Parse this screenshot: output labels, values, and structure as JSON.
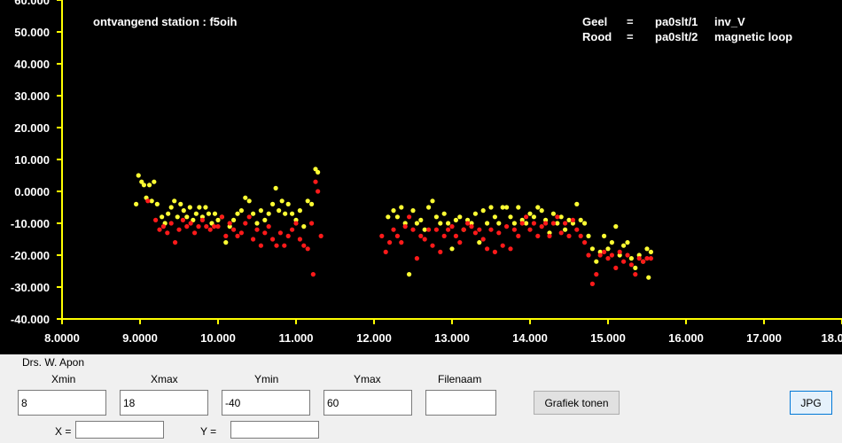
{
  "chart_data": {
    "type": "scatter",
    "title": "ontvangend station :  f5oih",
    "legend": [
      {
        "label": "Geel",
        "eq": "=",
        "station": "pa0slt/1",
        "antenna": "inv_V",
        "color": "#ffff33"
      },
      {
        "label": "Rood",
        "eq": "=",
        "station": "pa0slt/2",
        "antenna": "magnetic loop",
        "color": "#ff1a1a"
      }
    ],
    "legend_position": "top-right",
    "xlim": [
      8,
      18
    ],
    "ylim": [
      -40,
      60
    ],
    "x_ticks": [
      "8.0000",
      "9.0000",
      "10.000",
      "11.000",
      "12.000",
      "13.000",
      "14.000",
      "15.000",
      "16.000",
      "17.000",
      "18.0000"
    ],
    "y_ticks": [
      "60.000",
      "50.000",
      "40.000",
      "30.000",
      "20.000",
      "10.000",
      "0.0000",
      "-10.000",
      "-20.000",
      "-30.000",
      "-40.000"
    ],
    "grid": false,
    "series": [
      {
        "name": "Geel",
        "color": "#ffff33",
        "points": [
          [
            8.95,
            -4
          ],
          [
            8.98,
            5
          ],
          [
            9.02,
            3
          ],
          [
            9.05,
            2
          ],
          [
            9.08,
            -2
          ],
          [
            9.12,
            2
          ],
          [
            9.15,
            -3
          ],
          [
            9.18,
            3
          ],
          [
            9.22,
            -4
          ],
          [
            9.28,
            -8
          ],
          [
            9.32,
            -10
          ],
          [
            9.36,
            -7
          ],
          [
            9.4,
            -5
          ],
          [
            9.44,
            -3
          ],
          [
            9.48,
            -8
          ],
          [
            9.52,
            -4
          ],
          [
            9.56,
            -6
          ],
          [
            9.6,
            -8
          ],
          [
            9.64,
            -5
          ],
          [
            9.68,
            -9
          ],
          [
            9.72,
            -7
          ],
          [
            9.76,
            -5
          ],
          [
            9.8,
            -8
          ],
          [
            9.84,
            -5
          ],
          [
            9.88,
            -7
          ],
          [
            9.92,
            -10
          ],
          [
            9.96,
            -7
          ],
          [
            10.0,
            -9
          ],
          [
            10.05,
            -8
          ],
          [
            10.1,
            -16
          ],
          [
            10.15,
            -11
          ],
          [
            10.2,
            -9
          ],
          [
            10.25,
            -7
          ],
          [
            10.3,
            -6
          ],
          [
            10.35,
            -2
          ],
          [
            10.4,
            -3
          ],
          [
            10.45,
            -7
          ],
          [
            10.5,
            -10
          ],
          [
            10.55,
            -6
          ],
          [
            10.6,
            -9
          ],
          [
            10.65,
            -7
          ],
          [
            10.7,
            -4
          ],
          [
            10.74,
            1
          ],
          [
            10.78,
            -6
          ],
          [
            10.82,
            -3
          ],
          [
            10.86,
            -7
          ],
          [
            10.9,
            -4
          ],
          [
            10.95,
            -7
          ],
          [
            11.0,
            -9
          ],
          [
            11.05,
            -6
          ],
          [
            11.1,
            -11
          ],
          [
            11.15,
            -3
          ],
          [
            11.2,
            -4
          ],
          [
            11.25,
            7
          ],
          [
            11.28,
            6
          ],
          [
            12.18,
            -8
          ],
          [
            12.25,
            -6
          ],
          [
            12.3,
            -8
          ],
          [
            12.35,
            -5
          ],
          [
            12.4,
            -10
          ],
          [
            12.45,
            -26
          ],
          [
            12.5,
            -6
          ],
          [
            12.55,
            -10
          ],
          [
            12.6,
            -9
          ],
          [
            12.65,
            -12
          ],
          [
            12.7,
            -5
          ],
          [
            12.75,
            -3
          ],
          [
            12.8,
            -8
          ],
          [
            12.85,
            -10
          ],
          [
            12.9,
            -7
          ],
          [
            12.95,
            -10
          ],
          [
            13.0,
            -18
          ],
          [
            13.05,
            -9
          ],
          [
            13.1,
            -8
          ],
          [
            13.15,
            -12
          ],
          [
            13.2,
            -9
          ],
          [
            13.25,
            -10
          ],
          [
            13.3,
            -7
          ],
          [
            13.35,
            -16
          ],
          [
            13.4,
            -6
          ],
          [
            13.45,
            -10
          ],
          [
            13.5,
            -5
          ],
          [
            13.55,
            -8
          ],
          [
            13.6,
            -10
          ],
          [
            13.65,
            -5
          ],
          [
            13.7,
            -5
          ],
          [
            13.75,
            -8
          ],
          [
            13.8,
            -10
          ],
          [
            13.85,
            -5
          ],
          [
            13.9,
            -9
          ],
          [
            13.95,
            -10
          ],
          [
            14.0,
            -7
          ],
          [
            14.05,
            -8
          ],
          [
            14.1,
            -5
          ],
          [
            14.15,
            -6
          ],
          [
            14.2,
            -9
          ],
          [
            14.25,
            -13
          ],
          [
            14.3,
            -7
          ],
          [
            14.35,
            -10
          ],
          [
            14.4,
            -8
          ],
          [
            14.45,
            -12
          ],
          [
            14.5,
            -9
          ],
          [
            14.55,
            -10
          ],
          [
            14.6,
            -4
          ],
          [
            14.65,
            -9
          ],
          [
            14.7,
            -10
          ],
          [
            14.75,
            -14
          ],
          [
            14.8,
            -18
          ],
          [
            14.85,
            -22
          ],
          [
            14.9,
            -19
          ],
          [
            14.95,
            -14
          ],
          [
            15.0,
            -18
          ],
          [
            15.05,
            -16
          ],
          [
            15.1,
            -11
          ],
          [
            15.15,
            -20
          ],
          [
            15.2,
            -17
          ],
          [
            15.25,
            -16
          ],
          [
            15.3,
            -21
          ],
          [
            15.35,
            -24
          ],
          [
            15.4,
            -20
          ],
          [
            15.45,
            -22
          ],
          [
            15.5,
            -18
          ],
          [
            15.52,
            -27
          ],
          [
            15.55,
            -19
          ]
        ]
      },
      {
        "name": "Rood",
        "color": "#ff1a1a",
        "points": [
          [
            9.1,
            -3
          ],
          [
            9.2,
            -9
          ],
          [
            9.25,
            -12
          ],
          [
            9.3,
            -11
          ],
          [
            9.35,
            -13
          ],
          [
            9.4,
            -10
          ],
          [
            9.45,
            -16
          ],
          [
            9.5,
            -12
          ],
          [
            9.55,
            -9
          ],
          [
            9.6,
            -11
          ],
          [
            9.65,
            -10
          ],
          [
            9.7,
            -13
          ],
          [
            9.75,
            -11
          ],
          [
            9.8,
            -9
          ],
          [
            9.85,
            -11
          ],
          [
            9.9,
            -12
          ],
          [
            9.95,
            -11
          ],
          [
            10.0,
            -11
          ],
          [
            10.05,
            -8
          ],
          [
            10.1,
            -14
          ],
          [
            10.15,
            -10
          ],
          [
            10.2,
            -12
          ],
          [
            10.25,
            -14
          ],
          [
            10.3,
            -13
          ],
          [
            10.35,
            -10
          ],
          [
            10.4,
            -8
          ],
          [
            10.45,
            -15
          ],
          [
            10.5,
            -12
          ],
          [
            10.55,
            -17
          ],
          [
            10.6,
            -13
          ],
          [
            10.65,
            -11
          ],
          [
            10.7,
            -15
          ],
          [
            10.75,
            -17
          ],
          [
            10.8,
            -13
          ],
          [
            10.85,
            -17
          ],
          [
            10.9,
            -14
          ],
          [
            10.95,
            -12
          ],
          [
            11.0,
            -10
          ],
          [
            11.05,
            -15
          ],
          [
            11.1,
            -17
          ],
          [
            11.15,
            -18
          ],
          [
            11.2,
            -10
          ],
          [
            11.22,
            -26
          ],
          [
            11.25,
            3
          ],
          [
            11.28,
            0
          ],
          [
            11.32,
            -14
          ],
          [
            12.1,
            -14
          ],
          [
            12.15,
            -19
          ],
          [
            12.2,
            -16
          ],
          [
            12.25,
            -12
          ],
          [
            12.3,
            -14
          ],
          [
            12.35,
            -16
          ],
          [
            12.4,
            -11
          ],
          [
            12.45,
            -8
          ],
          [
            12.5,
            -12
          ],
          [
            12.55,
            -21
          ],
          [
            12.6,
            -14
          ],
          [
            12.65,
            -15
          ],
          [
            12.7,
            -12
          ],
          [
            12.75,
            -17
          ],
          [
            12.8,
            -12
          ],
          [
            12.85,
            -19
          ],
          [
            12.9,
            -14
          ],
          [
            12.95,
            -12
          ],
          [
            13.0,
            -11
          ],
          [
            13.05,
            -14
          ],
          [
            13.1,
            -16
          ],
          [
            13.15,
            -12
          ],
          [
            13.2,
            -10
          ],
          [
            13.25,
            -11
          ],
          [
            13.3,
            -13
          ],
          [
            13.35,
            -12
          ],
          [
            13.4,
            -15
          ],
          [
            13.45,
            -18
          ],
          [
            13.5,
            -12
          ],
          [
            13.55,
            -19
          ],
          [
            13.6,
            -13
          ],
          [
            13.65,
            -17
          ],
          [
            13.7,
            -11
          ],
          [
            13.75,
            -18
          ],
          [
            13.8,
            -12
          ],
          [
            13.85,
            -14
          ],
          [
            13.9,
            -10
          ],
          [
            13.95,
            -8
          ],
          [
            14.0,
            -12
          ],
          [
            14.05,
            -10
          ],
          [
            14.1,
            -14
          ],
          [
            14.15,
            -11
          ],
          [
            14.2,
            -10
          ],
          [
            14.25,
            -14
          ],
          [
            14.3,
            -10
          ],
          [
            14.35,
            -8
          ],
          [
            14.4,
            -13
          ],
          [
            14.45,
            -10
          ],
          [
            14.5,
            -14
          ],
          [
            14.55,
            -9
          ],
          [
            14.6,
            -12
          ],
          [
            14.65,
            -14
          ],
          [
            14.7,
            -16
          ],
          [
            14.75,
            -20
          ],
          [
            14.8,
            -29
          ],
          [
            14.85,
            -26
          ],
          [
            14.9,
            -20
          ],
          [
            14.95,
            -19
          ],
          [
            15.0,
            -21
          ],
          [
            15.05,
            -20
          ],
          [
            15.1,
            -24
          ],
          [
            15.15,
            -19
          ],
          [
            15.2,
            -22
          ],
          [
            15.25,
            -20
          ],
          [
            15.3,
            -23
          ],
          [
            15.35,
            -26
          ],
          [
            15.4,
            -21
          ],
          [
            15.45,
            -22
          ],
          [
            15.5,
            -21
          ],
          [
            15.55,
            -21
          ]
        ]
      }
    ]
  },
  "author": "Drs. W. Apon",
  "fields": {
    "xmin": {
      "label": "Xmin",
      "value": "8"
    },
    "xmax": {
      "label": "Xmax",
      "value": "18"
    },
    "ymin": {
      "label": "Ymin",
      "value": "-40"
    },
    "ymax": {
      "label": "Ymax",
      "value": "60"
    },
    "filename": {
      "label": "Filenaam",
      "value": ""
    }
  },
  "buttons": {
    "show_chart": "Grafiek tonen",
    "jpg": "JPG"
  },
  "coords": {
    "x_label": "X =",
    "x_value": "",
    "y_label": "Y =",
    "y_value": ""
  }
}
